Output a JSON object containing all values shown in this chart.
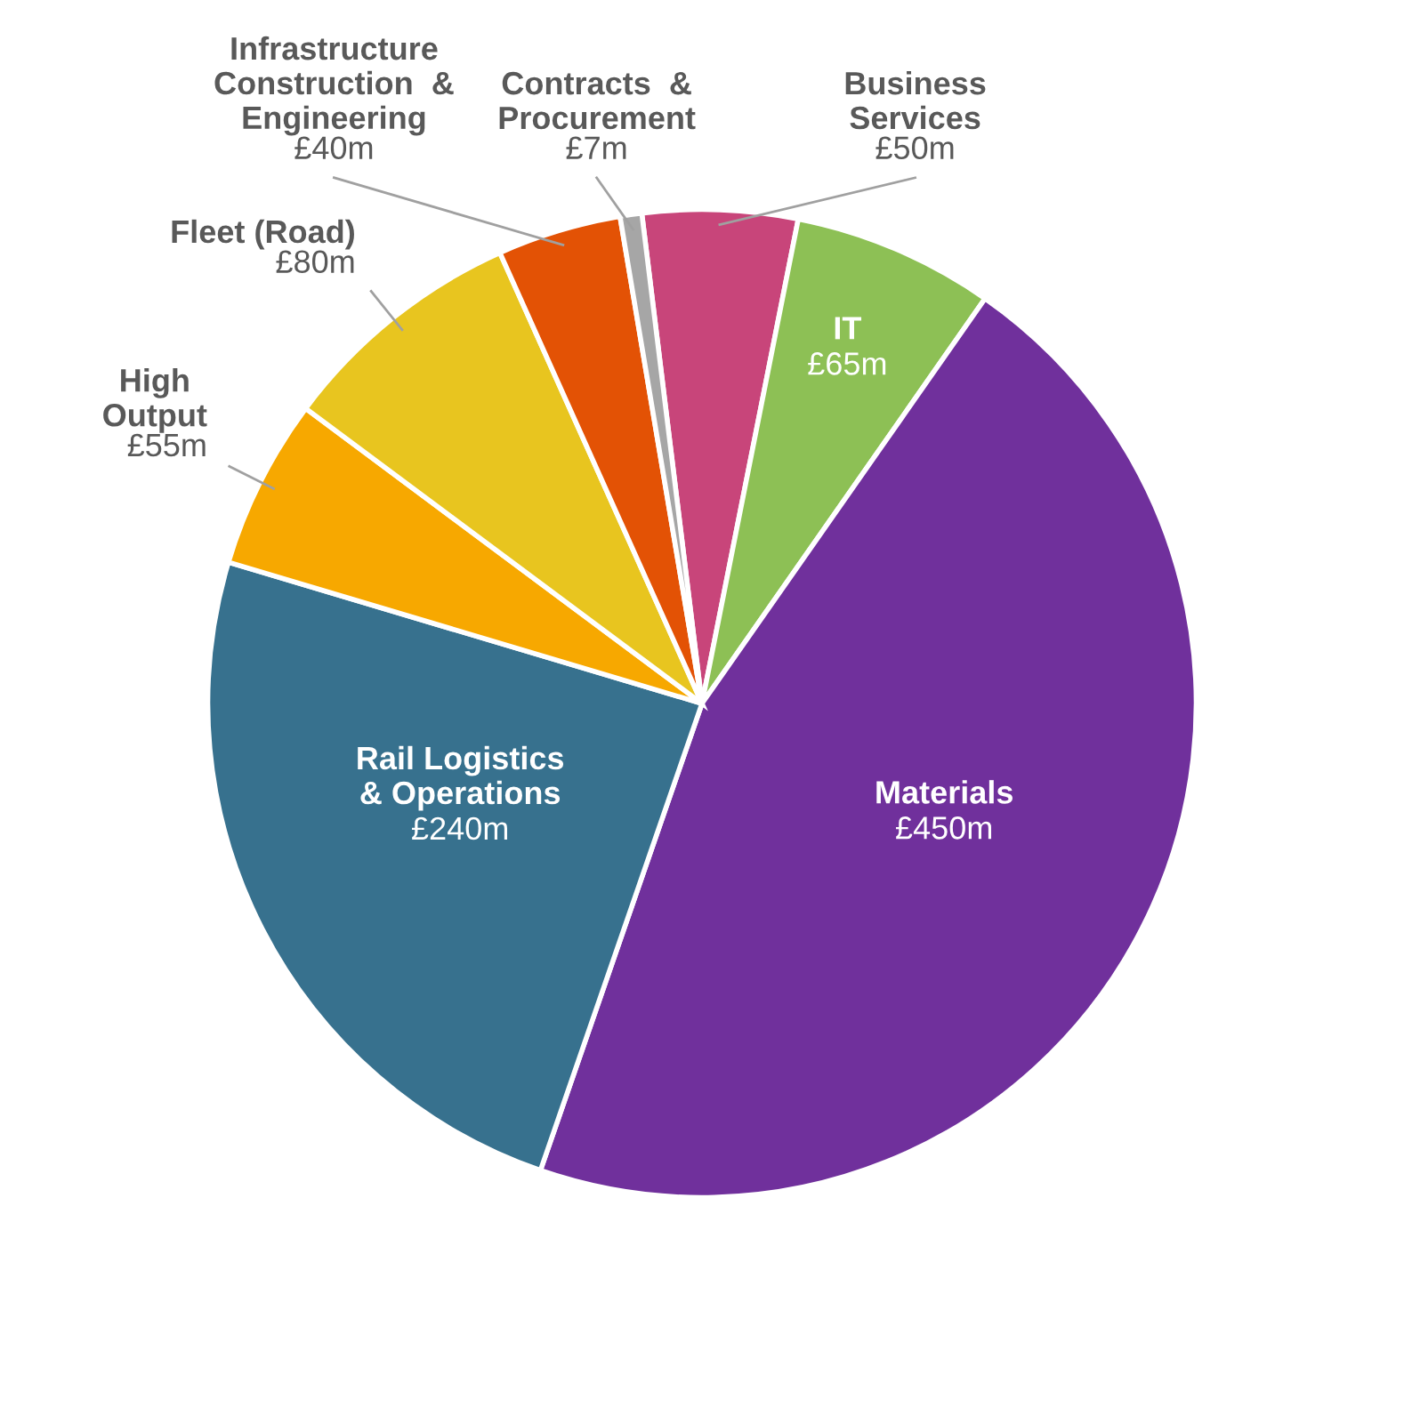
{
  "chart_data": {
    "type": "pie",
    "categories": [
      "Business\nServices",
      "IT",
      "Materials",
      "Rail Logistics\n& Operations",
      "High\nOutput",
      "Fleet (Road)",
      "Infrastructure\nConstruction  &\nEngineering",
      "Contracts  &\nProcurement"
    ],
    "values": [
      50,
      65,
      450,
      240,
      55,
      80,
      40,
      7
    ],
    "value_labels": [
      "£50m",
      "£65m",
      "£450m",
      "£240m",
      "£55m",
      "£80m",
      "£40m",
      "£7m"
    ],
    "colors": [
      "#c8457a",
      "#8dc055",
      "#70309c",
      "#37718e",
      "#f7a800",
      "#e8c51f",
      "#e35205",
      "#a6a6a6"
    ]
  }
}
